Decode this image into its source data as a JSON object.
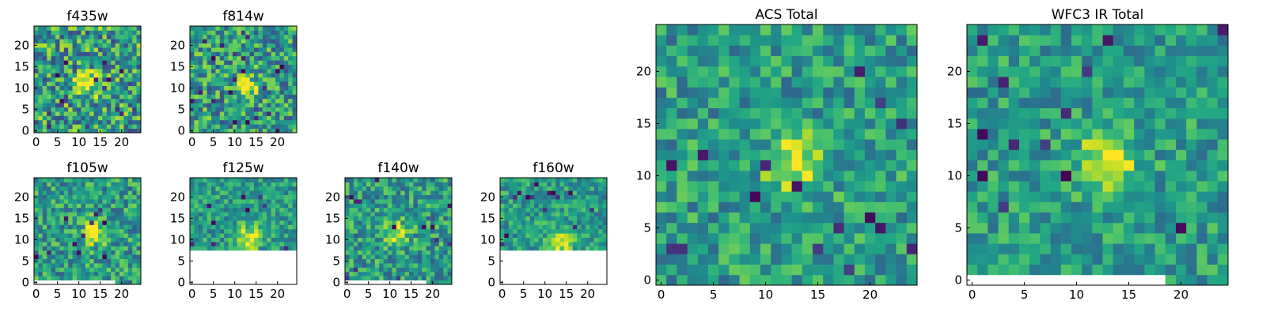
{
  "colors": {
    "background": "#ffffff",
    "axes_frame": "#000000",
    "missing": "#ffffff"
  },
  "colormap": "viridis",
  "chart_data": [
    {
      "type": "heatmap",
      "title": "f435w",
      "xlabel": "",
      "ylabel": "",
      "xlim": [
        0,
        25
      ],
      "ylim": [
        0,
        25
      ],
      "xticks": [
        "0",
        "5",
        "10",
        "15",
        "20"
      ],
      "yticks": [
        "0",
        "5",
        "10",
        "15",
        "20"
      ],
      "grid": false,
      "blank_region": null,
      "bright_spot": {
        "x": 12.5,
        "y": 11.5
      },
      "value_range": [
        0,
        1
      ],
      "noise_level": 0.35
    },
    {
      "type": "heatmap",
      "title": "f814w",
      "xlabel": "",
      "ylabel": "",
      "xlim": [
        0,
        25
      ],
      "ylim": [
        0,
        25
      ],
      "xticks": [
        "0",
        "5",
        "10",
        "15",
        "20"
      ],
      "yticks": [
        "0",
        "5",
        "10",
        "15",
        "20"
      ],
      "grid": false,
      "blank_region": null,
      "bright_spot": {
        "x": 13,
        "y": 11
      },
      "value_range": [
        0,
        1
      ],
      "noise_level": 0.3
    },
    {
      "type": "heatmap",
      "title": "f105w",
      "xlabel": "",
      "ylabel": "",
      "xlim": [
        0,
        25
      ],
      "ylim": [
        0,
        25
      ],
      "xticks": [
        "0",
        "5",
        "10",
        "15",
        "20"
      ],
      "yticks": [
        "0",
        "5",
        "10",
        "15",
        "20"
      ],
      "grid": false,
      "blank_region": {
        "x": [
          0,
          19
        ],
        "y": [
          0,
          1
        ]
      },
      "bright_spot": {
        "x": 14,
        "y": 12
      },
      "value_range": [
        0,
        1
      ],
      "noise_level": 0.25
    },
    {
      "type": "heatmap",
      "title": "f125w",
      "xlabel": "",
      "ylabel": "",
      "xlim": [
        0,
        25
      ],
      "ylim": [
        0,
        25
      ],
      "xticks": [
        "0",
        "5",
        "10",
        "15",
        "20"
      ],
      "yticks": [
        "0",
        "5",
        "10",
        "15",
        "20"
      ],
      "grid": false,
      "blank_region": {
        "x": [
          0,
          25
        ],
        "y": [
          0,
          8
        ]
      },
      "bright_spot": {
        "x": 14,
        "y": 11
      },
      "value_range": [
        0,
        1
      ],
      "noise_level": 0.2
    },
    {
      "type": "heatmap",
      "title": "f140w",
      "xlabel": "",
      "ylabel": "",
      "xlim": [
        0,
        25
      ],
      "ylim": [
        0,
        25
      ],
      "xticks": [
        "0",
        "5",
        "10",
        "15",
        "20"
      ],
      "yticks": [
        "0",
        "5",
        "10",
        "15",
        "20"
      ],
      "grid": false,
      "blank_region": {
        "x": [
          0,
          19
        ],
        "y": [
          0,
          1
        ]
      },
      "bright_spot": {
        "x": 12,
        "y": 12
      },
      "value_range": [
        0,
        1
      ],
      "noise_level": 0.25
    },
    {
      "type": "heatmap",
      "title": "f160w",
      "xlabel": "",
      "ylabel": "",
      "xlim": [
        0,
        25
      ],
      "ylim": [
        0,
        25
      ],
      "xticks": [
        "0",
        "5",
        "10",
        "15",
        "20"
      ],
      "yticks": [
        "0",
        "5",
        "10",
        "15",
        "20"
      ],
      "grid": false,
      "blank_region": {
        "x": [
          0,
          25
        ],
        "y": [
          0,
          8
        ]
      },
      "bright_spot": {
        "x": 14,
        "y": 10
      },
      "value_range": [
        0,
        1
      ],
      "noise_level": 0.2
    },
    {
      "type": "heatmap",
      "title": "ACS Total",
      "xlabel": "",
      "ylabel": "",
      "xlim": [
        0,
        25
      ],
      "ylim": [
        0,
        25
      ],
      "xticks": [
        "0",
        "5",
        "10",
        "15",
        "20"
      ],
      "yticks": [
        "0",
        "5",
        "10",
        "15",
        "20"
      ],
      "grid": false,
      "blank_region": null,
      "bright_spot": {
        "x": 13.5,
        "y": 11.5
      },
      "value_range": [
        0,
        1
      ],
      "noise_level": 0.22
    },
    {
      "type": "heatmap",
      "title": "WFC3 IR Total",
      "xlabel": "",
      "ylabel": "",
      "xlim": [
        0,
        25
      ],
      "ylim": [
        0,
        25
      ],
      "xticks": [
        "0",
        "5",
        "10",
        "15",
        "20"
      ],
      "yticks": [
        "0",
        "5",
        "10",
        "15",
        "20"
      ],
      "grid": false,
      "blank_region": {
        "x": [
          0,
          19
        ],
        "y": [
          0,
          1
        ]
      },
      "bright_spot": {
        "x": 13.5,
        "y": 12
      },
      "value_range": [
        0,
        1
      ],
      "noise_level": 0.2
    }
  ]
}
